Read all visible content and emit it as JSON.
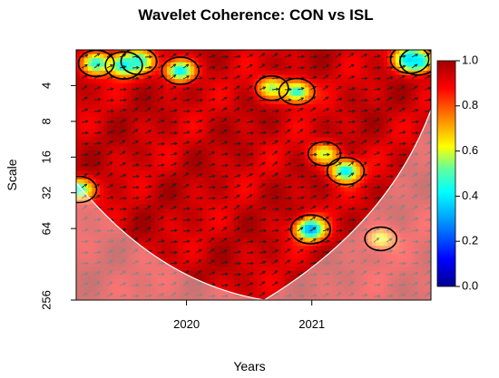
{
  "chart_data": {
    "type": "heatmap",
    "title": "Wavelet Coherence: CON vs ISL",
    "xlabel": "Years",
    "ylabel": "Scale",
    "x_ticks": [
      {
        "value": 2020.0,
        "label": "2020"
      },
      {
        "value": 2021.0,
        "label": "2021"
      }
    ],
    "x_range": [
      2019.12,
      2021.95
    ],
    "y_scale": "log2",
    "y_ticks": [
      {
        "value": 4,
        "label": "4"
      },
      {
        "value": 8,
        "label": "8"
      },
      {
        "value": 16,
        "label": "16"
      },
      {
        "value": 32,
        "label": "32"
      },
      {
        "value": 64,
        "label": "64"
      },
      {
        "value": 256,
        "label": "256"
      }
    ],
    "y_range": [
      2,
      256
    ],
    "colorbar": {
      "range": [
        0.0,
        1.0
      ],
      "ticks": [
        {
          "value": 1.0,
          "label": "1.0"
        },
        {
          "value": 0.8,
          "label": "0.8"
        },
        {
          "value": 0.6,
          "label": "0.6"
        },
        {
          "value": 0.4,
          "label": "0.4"
        },
        {
          "value": 0.2,
          "label": "0.2"
        },
        {
          "value": 0.0,
          "label": "0.0"
        }
      ],
      "colors": [
        "#00008f",
        "#0000ff",
        "#00a0ff",
        "#00ffff",
        "#60ff9f",
        "#ffff00",
        "#ff8000",
        "#ff0000",
        "#a00000"
      ]
    },
    "base_coherence": 0.94,
    "low_coherence_regions": [
      {
        "x": 2019.28,
        "scale": 2.6,
        "value": 0.45
      },
      {
        "x": 2019.5,
        "scale": 2.7,
        "value": 0.4
      },
      {
        "x": 2019.62,
        "scale": 2.5,
        "value": 0.45
      },
      {
        "x": 2019.95,
        "scale": 3.0,
        "value": 0.4
      },
      {
        "x": 2020.88,
        "scale": 4.5,
        "value": 0.45
      },
      {
        "x": 2020.68,
        "scale": 4.2,
        "value": 0.55
      },
      {
        "x": 2021.78,
        "scale": 2.4,
        "value": 0.35
      },
      {
        "x": 2021.85,
        "scale": 2.5,
        "value": 0.4
      },
      {
        "x": 2019.14,
        "scale": 30,
        "value": 0.45
      },
      {
        "x": 2021.27,
        "scale": 21,
        "value": 0.4
      },
      {
        "x": 2021.1,
        "scale": 15,
        "value": 0.58
      },
      {
        "x": 2020.99,
        "scale": 65,
        "value": 0.3
      },
      {
        "x": 2021.55,
        "scale": 78,
        "value": 0.6
      }
    ],
    "coi_color": "#ffffff",
    "coi_opacity": 0.45,
    "significance_contour_color": "#000000",
    "phase_arrows": "dominant right-pointing (in-phase)"
  }
}
